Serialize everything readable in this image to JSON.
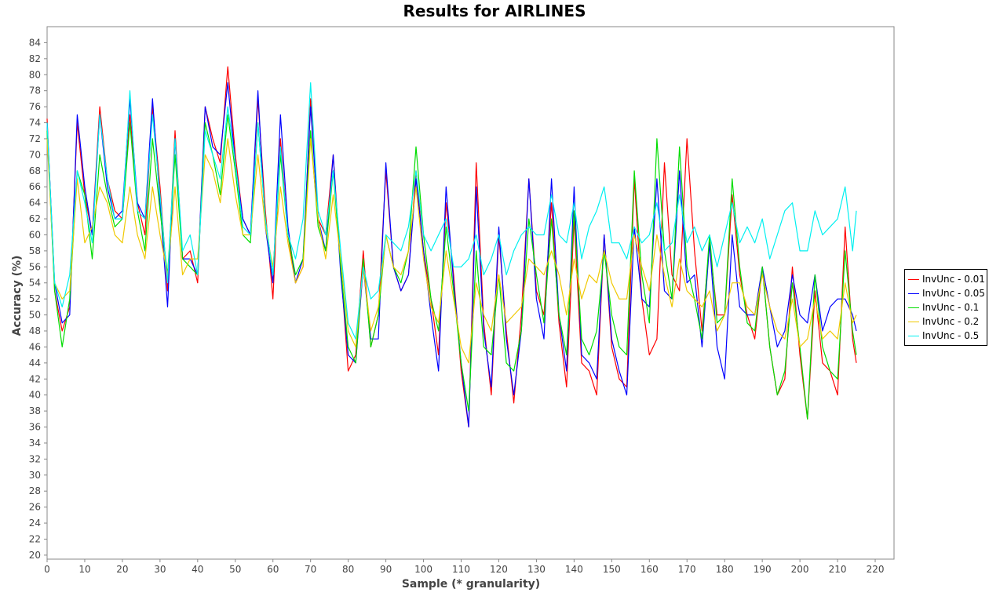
{
  "chart_data": {
    "type": "line",
    "title": "Results for AIRLINES",
    "xlabel": "Sample (* granularity)",
    "ylabel": "Accuracy (%)",
    "xlim": [
      0,
      225
    ],
    "ylim": [
      19.5,
      86
    ],
    "x_ticks": [
      0,
      10,
      20,
      30,
      40,
      50,
      60,
      70,
      80,
      90,
      100,
      110,
      120,
      130,
      140,
      150,
      160,
      170,
      180,
      190,
      200,
      210,
      220
    ],
    "y_ticks": [
      20,
      22,
      24,
      26,
      28,
      30,
      32,
      34,
      36,
      38,
      40,
      42,
      44,
      46,
      48,
      50,
      52,
      54,
      56,
      58,
      60,
      62,
      64,
      66,
      68,
      70,
      72,
      74,
      76,
      78,
      80,
      82,
      84
    ],
    "grid": false,
    "legend_position": "right",
    "series": [
      {
        "name": "InvUnc - 0.01",
        "color": "#ff0000",
        "x": [
          0,
          2,
          4,
          6,
          8,
          10,
          12,
          14,
          16,
          18,
          20,
          22,
          24,
          26,
          28,
          30,
          32,
          34,
          36,
          38,
          40,
          42,
          44,
          46,
          48,
          50,
          52,
          54,
          56,
          58,
          60,
          62,
          64,
          66,
          68,
          70,
          72,
          74,
          76,
          78,
          80,
          82,
          84,
          86,
          88,
          90,
          92,
          94,
          96,
          98,
          100,
          102,
          104,
          106,
          108,
          110,
          112,
          114,
          116,
          118,
          120,
          122,
          124,
          126,
          128,
          130,
          132,
          134,
          136,
          138,
          140,
          142,
          144,
          146,
          148,
          150,
          152,
          154,
          156,
          158,
          160,
          162,
          164,
          166,
          168,
          170,
          172,
          174,
          176,
          178,
          180,
          182,
          184,
          186,
          188,
          190,
          192,
          194,
          196,
          198,
          200,
          202,
          204,
          206,
          208,
          210,
          212,
          214,
          215
        ],
        "values": [
          74.5,
          53,
          48,
          51,
          74,
          65,
          60,
          76,
          67,
          63,
          62,
          75,
          64,
          60,
          76,
          66,
          53,
          73,
          57,
          58,
          54,
          76,
          72,
          69,
          81,
          70,
          62,
          60,
          77,
          63,
          52,
          72,
          60,
          54,
          56,
          77,
          62,
          60,
          70,
          56,
          43,
          45,
          58,
          46,
          50,
          68,
          56,
          53,
          55,
          68,
          58,
          52,
          45,
          64,
          55,
          43,
          36,
          69,
          49,
          40,
          60,
          48,
          39,
          50,
          67,
          53,
          50,
          64,
          49,
          41,
          62,
          44,
          43,
          40,
          60,
          46,
          42,
          41,
          67,
          52,
          45,
          47,
          69,
          55,
          53,
          72,
          58,
          48,
          59,
          50,
          50,
          65,
          55,
          50,
          47,
          56,
          46,
          40,
          42,
          56,
          45,
          37,
          53,
          44,
          43,
          40,
          61,
          47,
          44
        ]
      },
      {
        "name": "InvUnc - 0.05",
        "color": "#0000ff",
        "x": [
          0,
          2,
          4,
          6,
          8,
          10,
          12,
          14,
          16,
          18,
          20,
          22,
          24,
          26,
          28,
          30,
          32,
          34,
          36,
          38,
          40,
          42,
          44,
          46,
          48,
          50,
          52,
          54,
          56,
          58,
          60,
          62,
          64,
          66,
          68,
          70,
          72,
          74,
          76,
          78,
          80,
          82,
          84,
          86,
          88,
          90,
          92,
          94,
          96,
          98,
          100,
          102,
          104,
          106,
          108,
          110,
          112,
          114,
          116,
          118,
          120,
          122,
          124,
          126,
          128,
          130,
          132,
          134,
          136,
          138,
          140,
          142,
          144,
          146,
          148,
          150,
          152,
          154,
          156,
          158,
          160,
          162,
          164,
          166,
          168,
          170,
          172,
          174,
          176,
          178,
          180,
          182,
          184,
          186,
          188,
          190,
          192,
          194,
          196,
          198,
          200,
          202,
          204,
          206,
          208,
          210,
          212,
          214,
          215
        ],
        "values": [
          74,
          54,
          49,
          50,
          75,
          66,
          60,
          75,
          66,
          62,
          63,
          77,
          64,
          62,
          77,
          64,
          51,
          72,
          57,
          57,
          55,
          76,
          71,
          70,
          79,
          69,
          62,
          60,
          78,
          61,
          54,
          75,
          61,
          54,
          57,
          76,
          62,
          58,
          70,
          55,
          45,
          44,
          56,
          47,
          47,
          69,
          56,
          53,
          55,
          67,
          58,
          50,
          43,
          66,
          54,
          44,
          36,
          66,
          48,
          41,
          61,
          47,
          40,
          48,
          67,
          52,
          47,
          67,
          50,
          43,
          66,
          45,
          44,
          42,
          60,
          47,
          43,
          40,
          61,
          52,
          51,
          67,
          53,
          52,
          68,
          54,
          55,
          46,
          59,
          46,
          42,
          60,
          51,
          50,
          50,
          56,
          51,
          46,
          48,
          55,
          50,
          49,
          55,
          48,
          51,
          52,
          52,
          50,
          48
        ]
      },
      {
        "name": "InvUnc - 0.1",
        "color": "#00dd00",
        "x": [
          0,
          2,
          4,
          6,
          8,
          10,
          12,
          14,
          16,
          18,
          20,
          22,
          24,
          26,
          28,
          30,
          32,
          34,
          36,
          38,
          40,
          42,
          44,
          46,
          48,
          50,
          52,
          54,
          56,
          58,
          60,
          62,
          64,
          66,
          68,
          70,
          72,
          74,
          76,
          78,
          80,
          82,
          84,
          86,
          88,
          90,
          92,
          94,
          96,
          98,
          100,
          102,
          104,
          106,
          108,
          110,
          112,
          114,
          116,
          118,
          120,
          122,
          124,
          126,
          128,
          130,
          132,
          134,
          136,
          138,
          140,
          142,
          144,
          146,
          148,
          150,
          152,
          154,
          156,
          158,
          160,
          162,
          164,
          166,
          168,
          170,
          172,
          174,
          176,
          178,
          180,
          182,
          184,
          186,
          188,
          190,
          192,
          194,
          196,
          198,
          200,
          202,
          204,
          206,
          208,
          210,
          212,
          214,
          215
        ],
        "values": [
          73,
          53,
          46,
          52,
          68,
          65,
          57,
          70,
          65,
          61,
          62,
          74,
          63,
          58,
          72,
          63,
          55,
          70,
          57,
          56,
          55,
          74,
          70,
          65,
          75,
          68,
          60,
          59,
          74,
          62,
          55,
          70,
          60,
          55,
          57,
          73,
          61,
          58,
          68,
          56,
          46,
          44,
          57,
          46,
          50,
          60,
          56,
          54,
          58,
          71,
          60,
          52,
          48,
          61,
          53,
          44,
          38,
          58,
          46,
          45,
          55,
          44,
          43,
          48,
          62,
          55,
          49,
          62,
          50,
          45,
          63,
          47,
          45,
          48,
          58,
          50,
          46,
          45,
          68,
          55,
          49,
          72,
          58,
          52,
          71,
          56,
          52,
          47,
          60,
          49,
          50,
          67,
          56,
          49,
          48,
          56,
          46,
          40,
          43,
          54,
          46,
          37,
          55,
          46,
          43,
          42,
          58,
          48,
          45
        ]
      },
      {
        "name": "InvUnc - 0.2",
        "color": "#f0c800",
        "x": [
          0,
          2,
          4,
          6,
          8,
          10,
          12,
          14,
          16,
          18,
          20,
          22,
          24,
          26,
          28,
          30,
          32,
          34,
          36,
          38,
          40,
          42,
          44,
          46,
          48,
          50,
          52,
          54,
          56,
          58,
          60,
          62,
          64,
          66,
          68,
          70,
          72,
          74,
          76,
          78,
          80,
          82,
          84,
          86,
          88,
          90,
          92,
          94,
          96,
          98,
          100,
          102,
          104,
          106,
          108,
          110,
          112,
          114,
          116,
          118,
          120,
          122,
          124,
          126,
          128,
          130,
          132,
          134,
          136,
          138,
          140,
          142,
          144,
          146,
          148,
          150,
          152,
          154,
          156,
          158,
          160,
          162,
          164,
          166,
          168,
          170,
          172,
          174,
          176,
          178,
          180,
          182,
          184,
          186,
          188,
          190,
          192,
          194,
          196,
          198,
          200,
          202,
          204,
          206,
          208,
          210,
          212,
          214,
          215
        ],
        "values": [
          72,
          54,
          52,
          53,
          67,
          59,
          61,
          66,
          64,
          60,
          59,
          66,
          60,
          57,
          66,
          60,
          55,
          66,
          55,
          57,
          57,
          70,
          68,
          64,
          72,
          65,
          60,
          60,
          70,
          61,
          56,
          66,
          59,
          54,
          56,
          72,
          62,
          57,
          65,
          57,
          48,
          46,
          56,
          48,
          51,
          60,
          56,
          55,
          58,
          66,
          57,
          51,
          49,
          58,
          52,
          46,
          44,
          54,
          50,
          48,
          55,
          49,
          50,
          51,
          57,
          56,
          55,
          58,
          55,
          50,
          57,
          52,
          55,
          54,
          58,
          54,
          52,
          52,
          60,
          56,
          53,
          60,
          55,
          51,
          57,
          53,
          52,
          51,
          53,
          48,
          50,
          54,
          54,
          51,
          50,
          55,
          51,
          48,
          47,
          52,
          46,
          47,
          52,
          47,
          48,
          47,
          54,
          49,
          50
        ]
      },
      {
        "name": "InvUnc - 0.5",
        "color": "#00f0f0",
        "x": [
          0,
          2,
          4,
          6,
          8,
          10,
          12,
          14,
          16,
          18,
          20,
          22,
          24,
          26,
          28,
          30,
          32,
          34,
          36,
          38,
          40,
          42,
          44,
          46,
          48,
          50,
          52,
          54,
          56,
          58,
          60,
          62,
          64,
          66,
          68,
          70,
          72,
          74,
          76,
          78,
          80,
          82,
          84,
          86,
          88,
          90,
          92,
          94,
          96,
          98,
          100,
          102,
          104,
          106,
          108,
          110,
          112,
          114,
          116,
          118,
          120,
          122,
          124,
          126,
          128,
          130,
          132,
          134,
          136,
          138,
          140,
          142,
          144,
          146,
          148,
          150,
          152,
          154,
          156,
          158,
          160,
          162,
          164,
          166,
          168,
          170,
          172,
          174,
          176,
          178,
          180,
          182,
          184,
          186,
          188,
          190,
          192,
          194,
          196,
          198,
          200,
          202,
          204,
          206,
          208,
          210,
          212,
          214,
          215
        ],
        "values": [
          74,
          54,
          51,
          55,
          68,
          64,
          59,
          75,
          67,
          62,
          62,
          78,
          63,
          62,
          75,
          65,
          54,
          72,
          58,
          60,
          55,
          73,
          70,
          67,
          76,
          69,
          61,
          60,
          74,
          62,
          55,
          71,
          60,
          57,
          62,
          79,
          63,
          60,
          68,
          58,
          49,
          47,
          56,
          52,
          53,
          60,
          59,
          58,
          61,
          68,
          60,
          58,
          60,
          62,
          56,
          56,
          57,
          60,
          55,
          57,
          60,
          55,
          58,
          60,
          61,
          60,
          60,
          65,
          60,
          59,
          64,
          57,
          61,
          63,
          66,
          59,
          59,
          57,
          61,
          59,
          60,
          64,
          58,
          59,
          65,
          59,
          61,
          58,
          60,
          56,
          60,
          64,
          59,
          61,
          59,
          62,
          57,
          60,
          63,
          64,
          58,
          58,
          63,
          60,
          61,
          62,
          66,
          58,
          63
        ]
      }
    ]
  }
}
